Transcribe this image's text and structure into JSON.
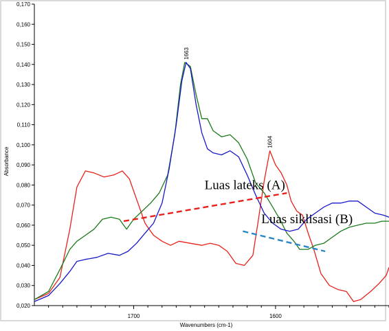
{
  "chart_data": {
    "type": "line",
    "xlabel": "Wavenumbers (cm-1)",
    "ylabel": "Absorbance",
    "xlim": [
      1770,
      1520
    ],
    "ylim": [
      0.02,
      0.17
    ],
    "x_reversed": true,
    "x_ticks": [
      1700,
      1600
    ],
    "y_ticks": [
      0.02,
      0.03,
      0.04,
      0.05,
      0.06,
      0.07,
      0.08,
      0.09,
      0.1,
      0.11,
      0.12,
      0.13,
      0.14,
      0.15,
      0.16,
      0.17
    ],
    "y_tick_labels": [
      "0,020",
      "0,030",
      "0,040",
      "0,050",
      "0,060",
      "0,070",
      "0,080",
      "0,090",
      "0,100",
      "0,110",
      "0,120",
      "0,130",
      "0,140",
      "0,150",
      "0,160",
      "0,170"
    ],
    "x_tick_labels": [
      "1700",
      "1600"
    ],
    "grid": false,
    "series": [
      {
        "color": "#e8201a",
        "points": [
          [
            1770,
            0.023
          ],
          [
            1760,
            0.026
          ],
          [
            1752,
            0.034
          ],
          [
            1745,
            0.058
          ],
          [
            1740,
            0.079
          ],
          [
            1734,
            0.087
          ],
          [
            1728,
            0.086
          ],
          [
            1721,
            0.084
          ],
          [
            1714,
            0.085
          ],
          [
            1708,
            0.087
          ],
          [
            1703,
            0.083
          ],
          [
            1697,
            0.071
          ],
          [
            1692,
            0.061
          ],
          [
            1686,
            0.055
          ],
          [
            1680,
            0.052
          ],
          [
            1674,
            0.05
          ],
          [
            1668,
            0.052
          ],
          [
            1660,
            0.051
          ],
          [
            1652,
            0.05
          ],
          [
            1646,
            0.051
          ],
          [
            1640,
            0.05
          ],
          [
            1634,
            0.047
          ],
          [
            1628,
            0.041
          ],
          [
            1622,
            0.04
          ],
          [
            1616,
            0.045
          ],
          [
            1612,
            0.063
          ],
          [
            1608,
            0.082
          ],
          [
            1604,
            0.097
          ],
          [
            1600,
            0.09
          ],
          [
            1596,
            0.086
          ],
          [
            1592,
            0.08
          ],
          [
            1589,
            0.072
          ],
          [
            1585,
            0.067
          ],
          [
            1581,
            0.065
          ],
          [
            1577,
            0.056
          ],
          [
            1573,
            0.048
          ],
          [
            1568,
            0.036
          ],
          [
            1562,
            0.03
          ],
          [
            1556,
            0.028
          ],
          [
            1550,
            0.027
          ],
          [
            1545,
            0.022
          ],
          [
            1540,
            0.023
          ],
          [
            1533,
            0.027
          ],
          [
            1527,
            0.031
          ],
          [
            1522,
            0.035
          ],
          [
            1520,
            0.039
          ]
        ]
      },
      {
        "color": "#1a7a1a",
        "points": [
          [
            1770,
            0.023
          ],
          [
            1760,
            0.027
          ],
          [
            1752,
            0.038
          ],
          [
            1745,
            0.048
          ],
          [
            1740,
            0.052
          ],
          [
            1734,
            0.055
          ],
          [
            1728,
            0.058
          ],
          [
            1722,
            0.063
          ],
          [
            1716,
            0.064
          ],
          [
            1710,
            0.063
          ],
          [
            1705,
            0.058
          ],
          [
            1700,
            0.063
          ],
          [
            1694,
            0.067
          ],
          [
            1688,
            0.071
          ],
          [
            1682,
            0.076
          ],
          [
            1676,
            0.085
          ],
          [
            1671,
            0.105
          ],
          [
            1667,
            0.13
          ],
          [
            1664,
            0.141
          ],
          [
            1660,
            0.139
          ],
          [
            1656,
            0.125
          ],
          [
            1652,
            0.113
          ],
          [
            1648,
            0.113
          ],
          [
            1644,
            0.107
          ],
          [
            1638,
            0.104
          ],
          [
            1632,
            0.105
          ],
          [
            1626,
            0.101
          ],
          [
            1620,
            0.093
          ],
          [
            1614,
            0.081
          ],
          [
            1608,
            0.076
          ],
          [
            1602,
            0.069
          ],
          [
            1597,
            0.063
          ],
          [
            1592,
            0.056
          ],
          [
            1587,
            0.052
          ],
          [
            1583,
            0.048
          ],
          [
            1577,
            0.048
          ],
          [
            1572,
            0.05
          ],
          [
            1566,
            0.051
          ],
          [
            1560,
            0.054
          ],
          [
            1554,
            0.057
          ],
          [
            1548,
            0.059
          ],
          [
            1542,
            0.06
          ],
          [
            1536,
            0.061
          ],
          [
            1530,
            0.061
          ],
          [
            1525,
            0.062
          ],
          [
            1520,
            0.062
          ]
        ]
      },
      {
        "color": "#1717c9",
        "points": [
          [
            1770,
            0.022
          ],
          [
            1760,
            0.025
          ],
          [
            1752,
            0.031
          ],
          [
            1745,
            0.037
          ],
          [
            1740,
            0.042
          ],
          [
            1734,
            0.043
          ],
          [
            1726,
            0.044
          ],
          [
            1718,
            0.046
          ],
          [
            1710,
            0.045
          ],
          [
            1704,
            0.047
          ],
          [
            1698,
            0.051
          ],
          [
            1692,
            0.056
          ],
          [
            1686,
            0.061
          ],
          [
            1680,
            0.071
          ],
          [
            1675,
            0.088
          ],
          [
            1670,
            0.11
          ],
          [
            1666,
            0.132
          ],
          [
            1663,
            0.141
          ],
          [
            1660,
            0.138
          ],
          [
            1656,
            0.12
          ],
          [
            1652,
            0.106
          ],
          [
            1648,
            0.098
          ],
          [
            1644,
            0.096
          ],
          [
            1638,
            0.095
          ],
          [
            1632,
            0.097
          ],
          [
            1626,
            0.094
          ],
          [
            1620,
            0.085
          ],
          [
            1614,
            0.075
          ],
          [
            1608,
            0.066
          ],
          [
            1602,
            0.061
          ],
          [
            1596,
            0.058
          ],
          [
            1590,
            0.057
          ],
          [
            1584,
            0.058
          ],
          [
            1578,
            0.063
          ],
          [
            1572,
            0.066
          ],
          [
            1566,
            0.069
          ],
          [
            1560,
            0.071
          ],
          [
            1554,
            0.071
          ],
          [
            1548,
            0.072
          ],
          [
            1542,
            0.072
          ],
          [
            1536,
            0.069
          ],
          [
            1530,
            0.066
          ],
          [
            1524,
            0.065
          ],
          [
            1520,
            0.064
          ]
        ]
      }
    ],
    "dashed_lines": [
      {
        "color": "#e8201a",
        "points": [
          [
            1707,
            0.062
          ],
          [
            1592,
            0.076
          ]
        ]
      },
      {
        "color": "#2a86c7",
        "points": [
          [
            1623,
            0.057
          ],
          [
            1565,
            0.047
          ]
        ]
      }
    ],
    "peak_labels": [
      {
        "text": "1663",
        "x": 1663,
        "y": 0.141
      },
      {
        "text": "1604",
        "x": 1604,
        "y": 0.097
      }
    ],
    "annotations": [
      {
        "text": "Luas lateks (A)",
        "x": 1650,
        "y": 0.078
      },
      {
        "text": "Luas siklisasi (B)",
        "x": 1610,
        "y": 0.061
      }
    ]
  }
}
